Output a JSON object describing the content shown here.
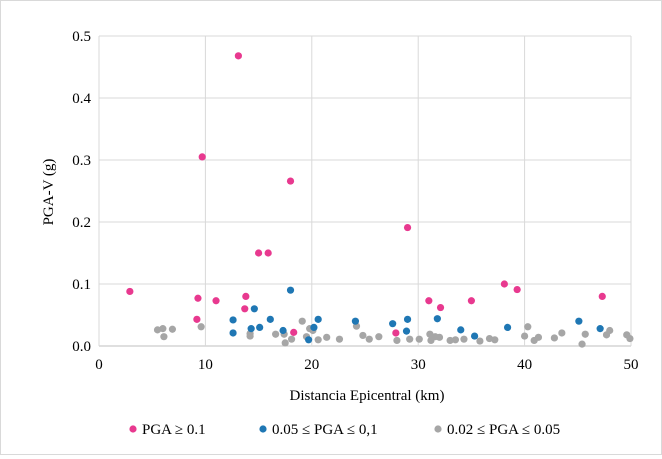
{
  "chart_data": {
    "type": "scatter",
    "title": "",
    "xlabel": "Distancia Epicentral (km)",
    "ylabel": "PGA-V (g)",
    "xlim": [
      0,
      50
    ],
    "ylim": [
      0,
      0.5
    ],
    "xticks": [
      0,
      10,
      20,
      30,
      40,
      50
    ],
    "xtick_labels": [
      "0",
      "10",
      "20",
      "30",
      "40",
      "50"
    ],
    "yticks": [
      0,
      0.1,
      0.2,
      0.3,
      0.4,
      0.5
    ],
    "ytick_labels": [
      "0.0",
      "0.1",
      "0.2",
      "0.3",
      "0.4",
      "0.5"
    ],
    "grid": "both",
    "legend_position": "bottom",
    "series": [
      {
        "name": "PGA ≥ 0.1",
        "color": "#e8398f",
        "points": [
          [
            2.9,
            0.088
          ],
          [
            9.2,
            0.043
          ],
          [
            9.3,
            0.077
          ],
          [
            9.7,
            0.305
          ],
          [
            11.0,
            0.073
          ],
          [
            13.1,
            0.468
          ],
          [
            13.7,
            0.06
          ],
          [
            13.8,
            0.08
          ],
          [
            15.0,
            0.15
          ],
          [
            15.9,
            0.15
          ],
          [
            18.0,
            0.266
          ],
          [
            18.3,
            0.022
          ],
          [
            27.9,
            0.021
          ],
          [
            29.0,
            0.191
          ],
          [
            31.0,
            0.073
          ],
          [
            32.1,
            0.062
          ],
          [
            35.0,
            0.073
          ],
          [
            38.1,
            0.1
          ],
          [
            39.3,
            0.091
          ],
          [
            47.3,
            0.08
          ]
        ]
      },
      {
        "name": "0.05 ≤ PGA ≤ 0,1",
        "color": "#1f77b4",
        "points": [
          [
            12.6,
            0.042
          ],
          [
            12.6,
            0.021
          ],
          [
            14.3,
            0.028
          ],
          [
            14.6,
            0.06
          ],
          [
            15.1,
            0.03
          ],
          [
            16.1,
            0.043
          ],
          [
            17.3,
            0.025
          ],
          [
            18.0,
            0.09
          ],
          [
            19.7,
            0.01
          ],
          [
            20.2,
            0.03
          ],
          [
            20.6,
            0.043
          ],
          [
            24.1,
            0.04
          ],
          [
            27.6,
            0.036
          ],
          [
            28.9,
            0.024
          ],
          [
            29.0,
            0.043
          ],
          [
            31.8,
            0.044
          ],
          [
            34.0,
            0.026
          ],
          [
            35.3,
            0.016
          ],
          [
            38.4,
            0.03
          ],
          [
            45.1,
            0.04
          ],
          [
            47.1,
            0.028
          ]
        ]
      },
      {
        "name": "0.02 ≤ PGA ≤ 0.05",
        "color": "#a6a6a6",
        "points": [
          [
            5.5,
            0.026
          ],
          [
            6.0,
            0.028
          ],
          [
            6.1,
            0.015
          ],
          [
            6.9,
            0.027
          ],
          [
            9.6,
            0.031
          ],
          [
            14.2,
            0.02
          ],
          [
            14.2,
            0.016
          ],
          [
            16.6,
            0.019
          ],
          [
            17.4,
            0.019
          ],
          [
            17.5,
            0.005
          ],
          [
            18.1,
            0.011
          ],
          [
            19.1,
            0.04
          ],
          [
            19.5,
            0.015
          ],
          [
            19.8,
            0.028
          ],
          [
            20.1,
            0.025
          ],
          [
            20.6,
            0.01
          ],
          [
            21.4,
            0.014
          ],
          [
            22.6,
            0.011
          ],
          [
            24.2,
            0.032
          ],
          [
            24.8,
            0.017
          ],
          [
            25.4,
            0.011
          ],
          [
            26.3,
            0.015
          ],
          [
            28.0,
            0.009
          ],
          [
            29.2,
            0.011
          ],
          [
            30.1,
            0.011
          ],
          [
            31.1,
            0.019
          ],
          [
            31.2,
            0.009
          ],
          [
            31.6,
            0.015
          ],
          [
            32.0,
            0.014
          ],
          [
            33.0,
            0.009
          ],
          [
            33.5,
            0.01
          ],
          [
            34.3,
            0.011
          ],
          [
            35.8,
            0.008
          ],
          [
            36.7,
            0.012
          ],
          [
            37.2,
            0.01
          ],
          [
            40.0,
            0.016
          ],
          [
            40.3,
            0.031
          ],
          [
            40.9,
            0.009
          ],
          [
            41.3,
            0.014
          ],
          [
            42.8,
            0.013
          ],
          [
            43.5,
            0.021
          ],
          [
            45.4,
            0.003
          ],
          [
            45.7,
            0.019
          ],
          [
            47.7,
            0.018
          ],
          [
            48.0,
            0.025
          ],
          [
            49.6,
            0.018
          ],
          [
            49.9,
            0.012
          ]
        ]
      }
    ]
  }
}
